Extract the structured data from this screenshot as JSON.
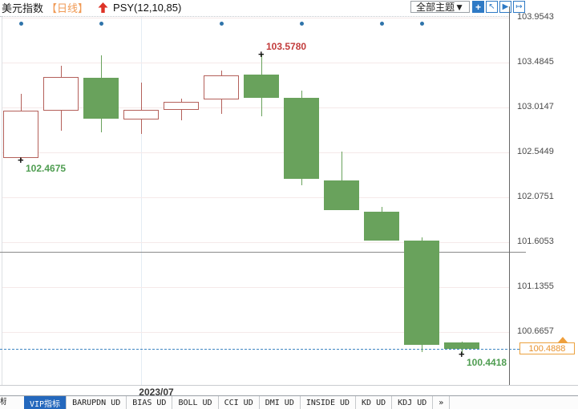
{
  "header": {
    "symbol": "美元指数",
    "period": "【日线】",
    "indicator": "PSY(12,10,85)",
    "theme_button": "全部主题▼"
  },
  "toolbar_icons": [
    {
      "name": "move-tool-icon",
      "glyph": "+",
      "style": "filled"
    },
    {
      "name": "zoom-reset-icon",
      "glyph": "↖",
      "style": "lined"
    },
    {
      "name": "play-forward-icon",
      "glyph": "▶",
      "style": "lined"
    },
    {
      "name": "pan-right-icon",
      "glyph": "↦",
      "style": "lined"
    }
  ],
  "price_axis": {
    "labels": [
      "103.9543",
      "103.4845",
      "103.0147",
      "102.5449",
      "102.0751",
      "101.6053",
      "101.1355",
      "100.6657"
    ],
    "current_price": "100.4888"
  },
  "date_axis": {
    "label": "2023/07"
  },
  "bottom_tabs": {
    "clipped_label": "标",
    "tabs": [
      {
        "label": "VIP指标",
        "selected": true
      },
      {
        "label": "BARUPDN UD",
        "selected": false
      },
      {
        "label": "BIAS UD",
        "selected": false
      },
      {
        "label": "BOLL UD",
        "selected": false
      },
      {
        "label": "CCI UD",
        "selected": false
      },
      {
        "label": "DMI UD",
        "selected": false
      },
      {
        "label": "INSIDE UD",
        "selected": false
      },
      {
        "label": "KD UD",
        "selected": false
      },
      {
        "label": "KDJ UD",
        "selected": false
      },
      {
        "label": "»",
        "selected": false
      }
    ]
  },
  "colors": {
    "up": "#b4605a",
    "down": "#69a25c",
    "dot": "#2f74aa",
    "high_label": "#c23b3b",
    "low_label": "#4f9d51",
    "orange": "#ef9f3c"
  },
  "chart_data": {
    "type": "candlestick",
    "title": "美元指数 日线",
    "indicator": "PSY(12,10,85)",
    "axis": {
      "top_label_price": 103.9543,
      "label_step": 0.4698,
      "bottom_label_price": 100.6657
    },
    "candles": [
      {
        "open": 102.486,
        "high": 103.157,
        "low": 102.4675,
        "close": 102.981,
        "dir": "up"
      },
      {
        "open": 102.981,
        "high": 103.451,
        "low": 102.771,
        "close": 103.333,
        "dir": "up"
      },
      {
        "open": 103.325,
        "high": 103.56,
        "low": 102.755,
        "close": 102.897,
        "dir": "down"
      },
      {
        "open": 102.889,
        "high": 103.275,
        "low": 102.738,
        "close": 102.99,
        "dir": "up"
      },
      {
        "open": 102.99,
        "high": 103.107,
        "low": 102.88,
        "close": 103.073,
        "dir": "up"
      },
      {
        "open": 103.099,
        "high": 103.401,
        "low": 102.948,
        "close": 103.35,
        "dir": "up"
      },
      {
        "open": 103.359,
        "high": 103.578,
        "low": 102.923,
        "close": 103.115,
        "dir": "down"
      },
      {
        "open": 103.115,
        "high": 103.191,
        "low": 102.201,
        "close": 102.268,
        "dir": "down"
      },
      {
        "open": 102.251,
        "high": 102.553,
        "low": 101.941,
        "close": 101.941,
        "dir": "down"
      },
      {
        "open": 101.924,
        "high": 101.974,
        "low": 101.622,
        "close": 101.622,
        "dir": "down"
      },
      {
        "open": 101.622,
        "high": 101.656,
        "low": 100.456,
        "close": 100.532,
        "dir": "down"
      },
      {
        "open": 100.553,
        "high": 100.568,
        "low": 100.4418,
        "close": 100.4888,
        "dir": "down"
      }
    ],
    "psy_dot_candles": [
      0,
      2,
      5,
      7,
      9,
      10
    ],
    "reference_line_price": 101.505,
    "current_price": 100.4888,
    "annotations": [
      {
        "type": "low",
        "candle": 0,
        "text": "102.4675"
      },
      {
        "type": "high",
        "candle": 6,
        "text": "103.5780"
      },
      {
        "type": "low",
        "candle": 11,
        "text": "100.4418"
      }
    ]
  }
}
